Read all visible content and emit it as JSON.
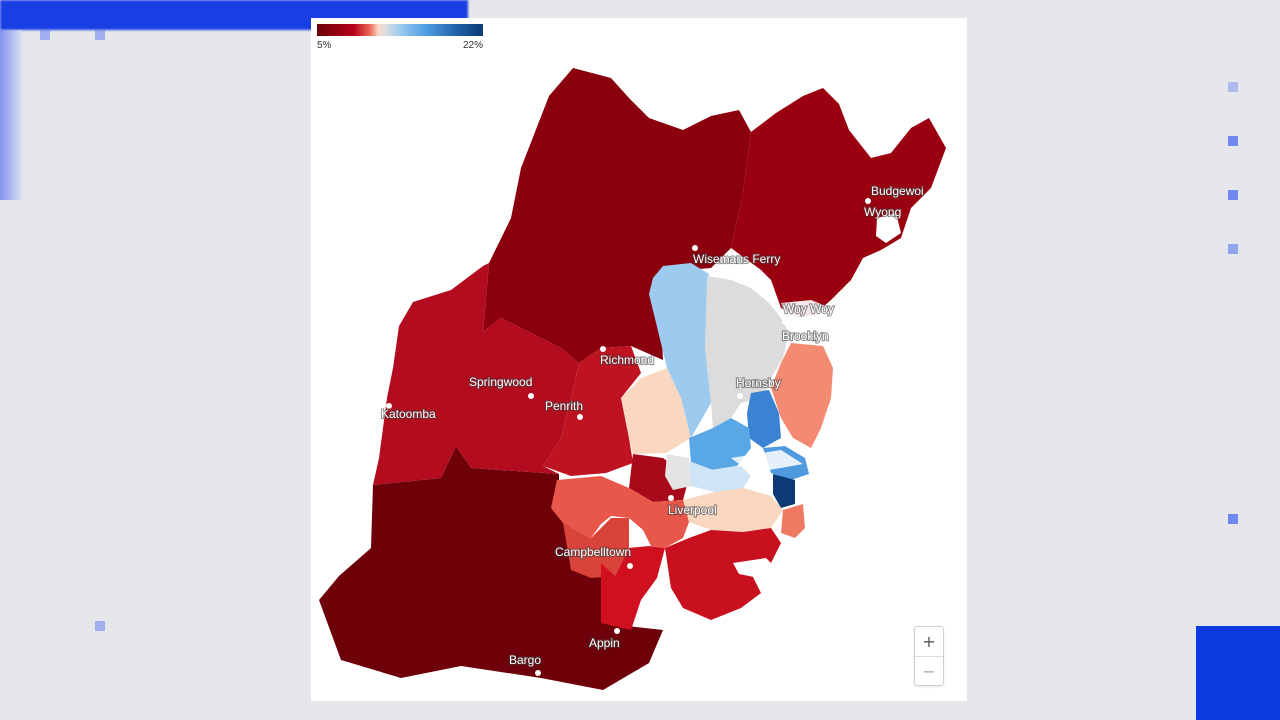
{
  "legend": {
    "min_label": "5%",
    "max_label": "22%"
  },
  "zoom": {
    "in_label": "+",
    "out_label": "−"
  },
  "cities": [
    {
      "name": "Budgewoi"
    },
    {
      "name": "Wyong"
    },
    {
      "name": "Wisemans Ferry"
    },
    {
      "name": "Woy Woy"
    },
    {
      "name": "Brooklyn"
    },
    {
      "name": "Richmond"
    },
    {
      "name": "Springwood"
    },
    {
      "name": "Penrith"
    },
    {
      "name": "Katoomba"
    },
    {
      "name": "Hornsby"
    },
    {
      "name": "Liverpool"
    },
    {
      "name": "Campbelltown"
    },
    {
      "name": "Appin"
    },
    {
      "name": "Bargo"
    }
  ],
  "colors": {
    "darkest_red": "#6e0009",
    "dark_red": "#8a000d",
    "red": "#b30c1e",
    "bright_red": "#d0101f",
    "salmon": "#e8584a",
    "light_salmon": "#f48a72",
    "peach": "#f9d7c0",
    "grey": "#dcdcdc",
    "light_blue": "#9ccbef",
    "mid_blue": "#5aa7e6",
    "blue": "#3a83d2",
    "navy": "#0b3a75"
  }
}
